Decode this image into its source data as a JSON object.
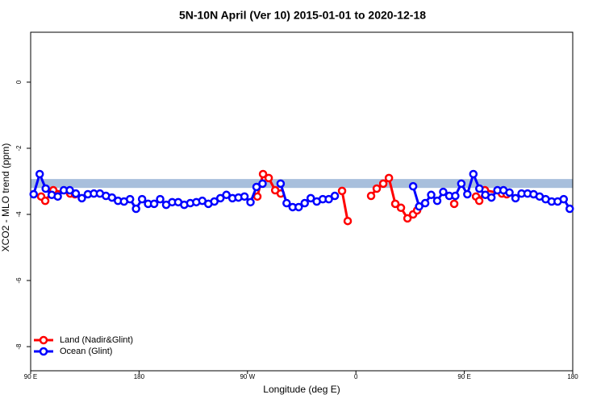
{
  "chart_data": {
    "type": "line",
    "title": "5N-10N April (Ver 10)   2015-01-01 to 2020-12-18",
    "x_label": "Longitude (deg E)",
    "y_label": "XCO2 - MLO trend (ppm)",
    "xlim": [
      90,
      540
    ],
    "ylim": [
      -8.73,
      1.51
    ],
    "xticks": [
      {
        "value": 90,
        "label": "90 E"
      },
      {
        "value": 180,
        "label": "180"
      },
      {
        "value": 270,
        "label": "90 W"
      },
      {
        "value": 360,
        "label": "0"
      },
      {
        "value": 450,
        "label": "90 E"
      },
      {
        "value": 540,
        "label": "180"
      }
    ],
    "yticks": [
      -8,
      -6,
      -4,
      -2,
      0
    ],
    "reference_band": {
      "ymin": -3.2,
      "ymax": -2.93,
      "color": "#a8bfdc"
    },
    "legend": "bottom-left",
    "series": [
      {
        "name": "Land (Nadir&Glint)",
        "color": "#ff0000",
        "x": [
          98.7,
          102.1,
          108.8,
          122.8,
          126.8,
          200,
          278.2,
          282.9,
          287.6,
          293.0,
          297.6,
          320,
          348.5,
          353.2,
          360,
          372.6,
          377.3,
          382.7,
          387.4,
          392.7,
          397.4,
          402.8,
          407.5,
          410.8,
          420,
          441.6,
          450,
          459.7,
          462.4,
          467.1,
          481.2,
          485.2
        ],
        "values": [
          -3.46,
          -3.59,
          -3.27,
          -3.37,
          -3.39,
          null,
          -3.46,
          -2.78,
          -2.9,
          -3.27,
          -3.37,
          null,
          -3.29,
          -4.2,
          null,
          -3.44,
          -3.22,
          -3.07,
          -2.9,
          -3.68,
          -3.8,
          -4.12,
          -4.0,
          -3.88,
          null,
          -3.68,
          null,
          -3.46,
          -3.59,
          -3.27,
          -3.37,
          -3.39
        ]
      },
      {
        "name": "Ocean (Glint)",
        "color": "#0000ff",
        "x": [
          92.5,
          97.5,
          102.5,
          107.5,
          112.5,
          117.5,
          122.5,
          127.5,
          132.5,
          137.5,
          142.5,
          147.5,
          152.5,
          157.5,
          162.5,
          167.5,
          172.5,
          177.5,
          182.5,
          187.5,
          192.5,
          197.5,
          202.5,
          207.5,
          212.5,
          217.5,
          222.5,
          227.5,
          232.5,
          237.5,
          242.5,
          247.5,
          252.5,
          257.5,
          262.5,
          267.5,
          272.5,
          277.5,
          282.5,
          287.5,
          292.5,
          297.5,
          302.5,
          307.5,
          312.5,
          317.5,
          322.5,
          327.5,
          332.5,
          337.5,
          342.5,
          347.5,
          352.5,
          357.5,
          362.5,
          367.5,
          372.5,
          377.5,
          382.5,
          387.5,
          392.5,
          397.5,
          402.5,
          407.5,
          412.5,
          417.5,
          422.5,
          427.5,
          432.5,
          437.5,
          442.5,
          447.5,
          452.5,
          457.5,
          462.5,
          467.5,
          472.5,
          477.5,
          482.5,
          487.5,
          492.5,
          497.5,
          502.5,
          507.5,
          512.5,
          517.5,
          522.5,
          527.5,
          532.5,
          537.5
        ],
        "values": [
          -3.39,
          -2.78,
          -3.22,
          -3.41,
          -3.46,
          -3.27,
          -3.27,
          -3.37,
          -3.51,
          -3.39,
          -3.37,
          -3.37,
          -3.44,
          -3.49,
          -3.59,
          -3.61,
          -3.54,
          -3.83,
          -3.54,
          -3.68,
          -3.68,
          -3.54,
          -3.71,
          -3.63,
          -3.63,
          -3.71,
          -3.66,
          -3.63,
          -3.59,
          -3.68,
          -3.61,
          -3.51,
          -3.41,
          -3.51,
          -3.49,
          -3.46,
          -3.63,
          -3.17,
          -3.07,
          null,
          null,
          -3.07,
          -3.66,
          -3.78,
          -3.78,
          -3.66,
          -3.51,
          -3.61,
          -3.54,
          -3.54,
          -3.44,
          null,
          null,
          null,
          null,
          null,
          null,
          null,
          null,
          null,
          null,
          null,
          null,
          -3.15,
          -3.76,
          -3.66,
          -3.41,
          -3.59,
          -3.32,
          -3.44,
          -3.44,
          -3.07,
          -3.39,
          -2.78,
          -3.22,
          -3.41,
          -3.49,
          -3.27,
          -3.27,
          -3.34,
          -3.51,
          -3.37,
          -3.37,
          -3.39,
          -3.46,
          -3.54,
          -3.61,
          -3.61,
          -3.54,
          -3.83
        ]
      }
    ]
  }
}
